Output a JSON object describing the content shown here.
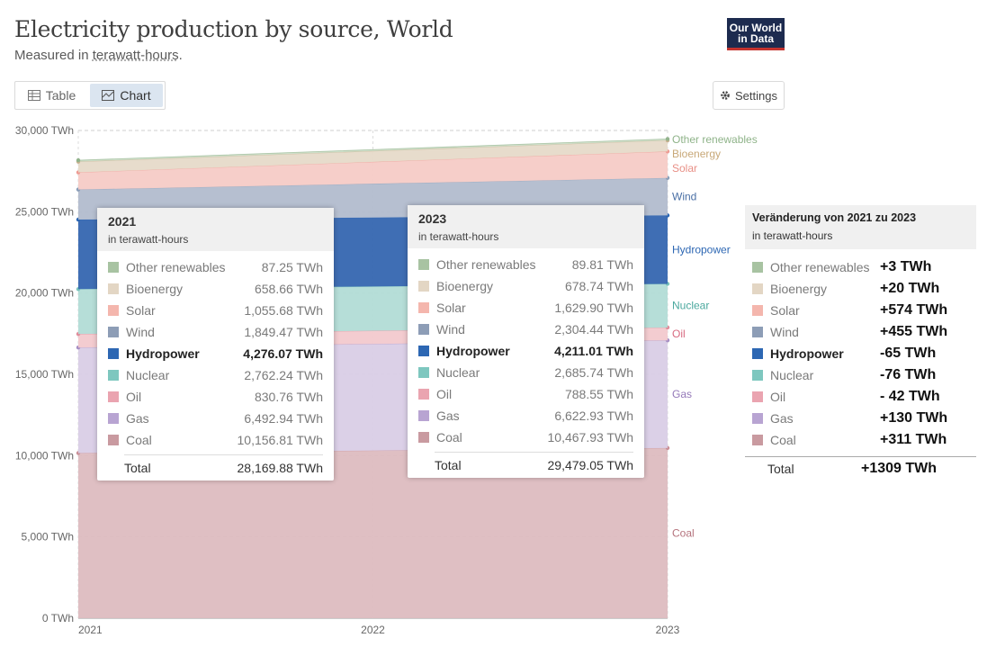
{
  "header": {
    "title": "Electricity production by source, World",
    "subtitle_prefix": "Measured in ",
    "subtitle_unit": "terawatt-hours",
    "subtitle_suffix": ".",
    "logo_line1": "Our World",
    "logo_line2": "in Data"
  },
  "tabs": {
    "table_label": "Table",
    "chart_label": "Chart",
    "active": "Chart"
  },
  "settings_label": "Settings",
  "chart_data": {
    "type": "area",
    "stacked": true,
    "x": [
      2021,
      2022,
      2023
    ],
    "x_tick_labels": [
      "2021",
      "2022",
      "2023"
    ],
    "y_ticks": [
      "0 TWh",
      "5,000 TWh",
      "10,000 TWh",
      "15,000 TWh",
      "20,000 TWh",
      "25,000 TWh",
      "30,000 TWh"
    ],
    "y_tick_values": [
      0,
      5000,
      10000,
      15000,
      20000,
      25000,
      30000
    ],
    "ylim": [
      0,
      30000
    ],
    "grid": true,
    "legend": "right",
    "series": [
      {
        "name": "Coal",
        "color": "#c98f97",
        "fill": "#ddbcc0",
        "values": [
          10156.81,
          10312.0,
          10467.93
        ]
      },
      {
        "name": "Gas",
        "color": "#a68fc4",
        "fill": "#d9cee6",
        "values": [
          6492.94,
          6557.0,
          6622.93
        ]
      },
      {
        "name": "Oil",
        "color": "#e08d9b",
        "fill": "#f2c9ce",
        "values": [
          830.76,
          810.0,
          788.55
        ]
      },
      {
        "name": "Nuclear",
        "color": "#79c3bb",
        "fill": "#b2dcd6",
        "values": [
          2762.24,
          2724.0,
          2685.74
        ]
      },
      {
        "name": "Hydropower",
        "color": "#2d67b3",
        "fill": "#3566b0",
        "values": [
          4276.07,
          4244.0,
          4211.01
        ]
      },
      {
        "name": "Wind",
        "color": "#8a9eb8",
        "fill": "#b2bccd",
        "values": [
          1849.47,
          2077.0,
          2304.44
        ]
      },
      {
        "name": "Solar",
        "color": "#ee9b93",
        "fill": "#f5cbc6",
        "values": [
          1055.68,
          1343.0,
          1629.9
        ]
      },
      {
        "name": "Bioenergy",
        "color": "#c9b08f",
        "fill": "#e6dac9",
        "values": [
          658.66,
          669.0,
          678.74
        ]
      },
      {
        "name": "Other renewables",
        "color": "#92b38c",
        "fill": "#cbdcc6",
        "values": [
          87.25,
          88.5,
          89.81
        ]
      }
    ],
    "end_labels": [
      "Other renewables",
      "Bioenergy",
      "Solar",
      "Wind",
      "Hydropower",
      "Nuclear",
      "Oil",
      "Gas",
      "Coal"
    ]
  },
  "tooltip_2021": {
    "year": "2021",
    "unit": "in terawatt-hours",
    "rows": [
      {
        "name": "Other renewables",
        "value": "87.25 TWh",
        "color": "#a8c3a2"
      },
      {
        "name": "Bioenergy",
        "value": "658.66 TWh",
        "color": "#e3d6c4"
      },
      {
        "name": "Solar",
        "value": "1,055.68 TWh",
        "color": "#f4b6ad"
      },
      {
        "name": "Wind",
        "value": "1,849.47 TWh",
        "color": "#8d9db6"
      },
      {
        "name": "Hydropower",
        "value": "4,276.07 TWh",
        "color": "#2d67b3"
      },
      {
        "name": "Nuclear",
        "value": "2,762.24 TWh",
        "color": "#7ec7bf"
      },
      {
        "name": "Oil",
        "value": "830.76 TWh",
        "color": "#eaa4b0"
      },
      {
        "name": "Gas",
        "value": "6,492.94 TWh",
        "color": "#b8a4d2"
      },
      {
        "name": "Coal",
        "value": "10,156.81 TWh",
        "color": "#c99aa0"
      }
    ],
    "total_label": "Total",
    "total_value": "28,169.88 TWh"
  },
  "tooltip_2023": {
    "year": "2023",
    "unit": "in terawatt-hours",
    "rows": [
      {
        "name": "Other renewables",
        "value": "89.81 TWh",
        "color": "#a8c3a2"
      },
      {
        "name": "Bioenergy",
        "value": "678.74 TWh",
        "color": "#e3d6c4"
      },
      {
        "name": "Solar",
        "value": "1,629.90 TWh",
        "color": "#f4b6ad"
      },
      {
        "name": "Wind",
        "value": "2,304.44 TWh",
        "color": "#8d9db6"
      },
      {
        "name": "Hydropower",
        "value": "4,211.01 TWh",
        "color": "#2d67b3"
      },
      {
        "name": "Nuclear",
        "value": "2,685.74 TWh",
        "color": "#7ec7bf"
      },
      {
        "name": "Oil",
        "value": "788.55 TWh",
        "color": "#eaa4b0"
      },
      {
        "name": "Gas",
        "value": "6,622.93 TWh",
        "color": "#b8a4d2"
      },
      {
        "name": "Coal",
        "value": "10,467.93 TWh",
        "color": "#c99aa0"
      }
    ],
    "total_label": "Total",
    "total_value": "29,479.05 TWh"
  },
  "change_panel": {
    "title": "Veränderung von 2021 zu 2023",
    "unit": "in terawatt-hours",
    "rows": [
      {
        "name": "Other renewables",
        "value": "+3 TWh",
        "color": "#a8c3a2"
      },
      {
        "name": "Bioenergy",
        "value": "+20 TWh",
        "color": "#e3d6c4"
      },
      {
        "name": "Solar",
        "value": "+574 TWh",
        "color": "#f4b6ad"
      },
      {
        "name": "Wind",
        "value": "+455 TWh",
        "color": "#8d9db6"
      },
      {
        "name": "Hydropower",
        "value": "-65 TWh",
        "color": "#2d67b3"
      },
      {
        "name": "Nuclear",
        "value": "-76 TWh",
        "color": "#7ec7bf"
      },
      {
        "name": "Oil",
        "value": "- 42 TWh",
        "color": "#eaa4b0"
      },
      {
        "name": "Gas",
        "value": "+130 TWh",
        "color": "#b8a4d2"
      },
      {
        "name": "Coal",
        "value": "+311 TWh",
        "color": "#c99aa0"
      }
    ],
    "total_label": "Total",
    "total_value": "+1309 TWh"
  }
}
